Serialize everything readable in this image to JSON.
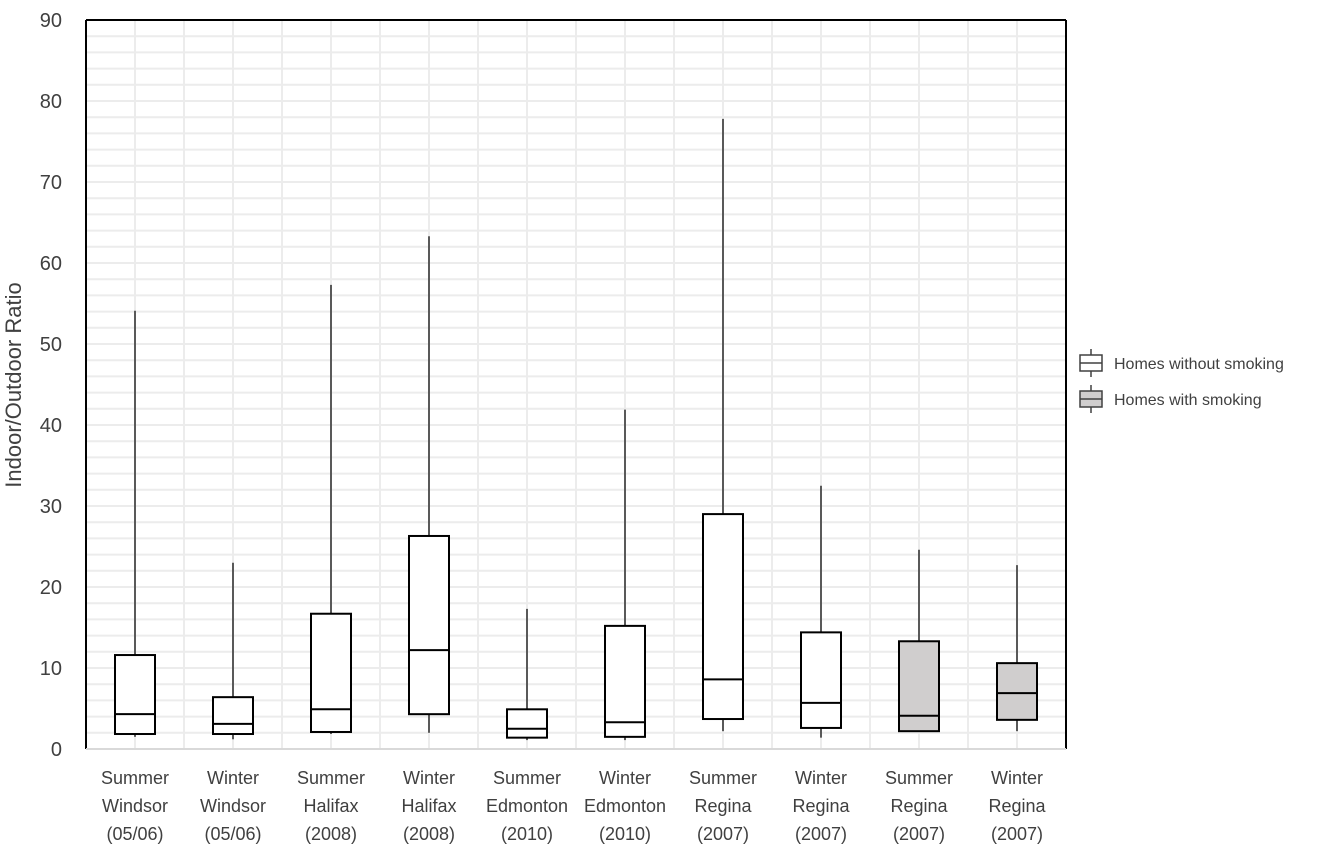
{
  "chart_data": {
    "type": "boxplot",
    "title": "",
    "xlabel": "",
    "ylabel": "Indoor/Outdoor Ratio",
    "ylim": [
      0,
      90
    ],
    "yticks": [
      0,
      10,
      20,
      30,
      40,
      50,
      60,
      70,
      80,
      90
    ],
    "grid": true,
    "legend_position": "right",
    "legend": [
      {
        "label": "Homes without smoking",
        "color": "#ffffff"
      },
      {
        "label": "Homes with smoking",
        "color": "#d0cece"
      }
    ],
    "categories": [
      [
        "Summer",
        "Windsor",
        "(05/06)"
      ],
      [
        "Winter",
        "Windsor",
        "(05/06)"
      ],
      [
        "Summer",
        "Halifax",
        "(2008)"
      ],
      [
        "Winter",
        "Halifax",
        "(2008)"
      ],
      [
        "Summer",
        "Edmonton",
        "(2010)"
      ],
      [
        "Winter",
        "Edmonton",
        "(2010)"
      ],
      [
        "Summer",
        "Regina",
        "(2007)"
      ],
      [
        "Winter",
        "Regina",
        "(2007)"
      ],
      [
        "Summer",
        "Regina",
        "(2007)"
      ],
      [
        "Winter",
        "Regina",
        "(2007)"
      ]
    ],
    "boxes": [
      {
        "min": 1.5,
        "q1": 1.85,
        "median": 4.3,
        "q3": 11.6,
        "max": 54.1,
        "group": 0
      },
      {
        "min": 1.2,
        "q1": 1.85,
        "median": 3.1,
        "q3": 6.4,
        "max": 23.0,
        "group": 0
      },
      {
        "min": 1.85,
        "q1": 2.1,
        "median": 4.9,
        "q3": 16.7,
        "max": 57.3,
        "group": 0
      },
      {
        "min": 2.0,
        "q1": 4.3,
        "median": 12.2,
        "q3": 26.3,
        "max": 63.3,
        "group": 0
      },
      {
        "min": 1.1,
        "q1": 1.4,
        "median": 2.5,
        "q3": 4.9,
        "max": 17.3,
        "group": 0
      },
      {
        "min": 1.1,
        "q1": 1.5,
        "median": 3.3,
        "q3": 15.2,
        "max": 41.9,
        "group": 0
      },
      {
        "min": 2.2,
        "q1": 3.7,
        "median": 8.6,
        "q3": 29.0,
        "max": 77.8,
        "group": 0
      },
      {
        "min": 1.4,
        "q1": 2.6,
        "median": 5.7,
        "q3": 14.4,
        "max": 32.5,
        "group": 0
      },
      {
        "min": 2.1,
        "q1": 2.2,
        "median": 4.1,
        "q3": 13.3,
        "max": 24.6,
        "group": 1
      },
      {
        "min": 2.2,
        "q1": 3.6,
        "median": 6.9,
        "q3": 10.6,
        "max": 22.7,
        "group": 1
      }
    ]
  }
}
